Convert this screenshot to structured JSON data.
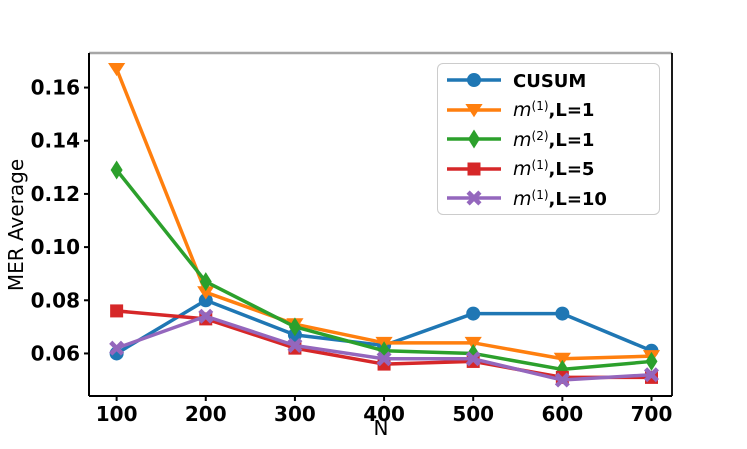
{
  "figure": {
    "background": "#ffffff"
  },
  "chart_data": {
    "type": "line",
    "title": "",
    "xlabel": "N",
    "ylabel": "MER Average",
    "x": [
      100,
      200,
      300,
      400,
      500,
      600,
      700
    ],
    "xticks": [
      100,
      200,
      300,
      400,
      500,
      600,
      700
    ],
    "yticks": [
      0.06,
      0.08,
      0.1,
      0.12,
      0.14,
      0.16
    ],
    "xlim": [
      69,
      723
    ],
    "ylim": [
      0.044,
      0.173
    ],
    "grid": false,
    "legend_position": "upper right",
    "axis": {
      "spine_color": "#000000",
      "top_spine_color": "#a6a6a6",
      "tick_color": "#000000"
    },
    "series": [
      {
        "name": "CUSUM",
        "label_text": "CUSUM",
        "label": {
          "tail": "CUSUM"
        },
        "color": "#1f77b4",
        "marker": "circle",
        "values": [
          0.06,
          0.08,
          0.067,
          0.063,
          0.075,
          0.075,
          0.061
        ]
      },
      {
        "name": "m1-L1",
        "label_text": "m^(1),L=1",
        "label": {
          "var": "m",
          "sup": "(1)",
          "tail": ",L=1"
        },
        "color": "#ff7f0e",
        "marker": "triangle-down",
        "values": [
          0.167,
          0.083,
          0.071,
          0.064,
          0.064,
          0.058,
          0.059
        ]
      },
      {
        "name": "m2-L1",
        "label_text": "m^(2),L=1",
        "label": {
          "var": "m",
          "sup": "(2)",
          "tail": ",L=1"
        },
        "color": "#2ca02c",
        "marker": "thin-diamond",
        "values": [
          0.129,
          0.087,
          0.07,
          0.061,
          0.06,
          0.054,
          0.057
        ]
      },
      {
        "name": "m1-L5",
        "label_text": "m^(1),L=5",
        "label": {
          "var": "m",
          "sup": "(1)",
          "tail": ",L=5"
        },
        "color": "#d62728",
        "marker": "square",
        "values": [
          0.076,
          0.073,
          0.062,
          0.056,
          0.057,
          0.051,
          0.051
        ]
      },
      {
        "name": "m1-L10",
        "label_text": "m^(1),L=10",
        "label": {
          "var": "m",
          "sup": "(1)",
          "tail": ",L=10"
        },
        "color": "#9467bd",
        "marker": "x-filled",
        "values": [
          0.062,
          0.074,
          0.063,
          0.058,
          0.058,
          0.05,
          0.052
        ]
      }
    ]
  }
}
